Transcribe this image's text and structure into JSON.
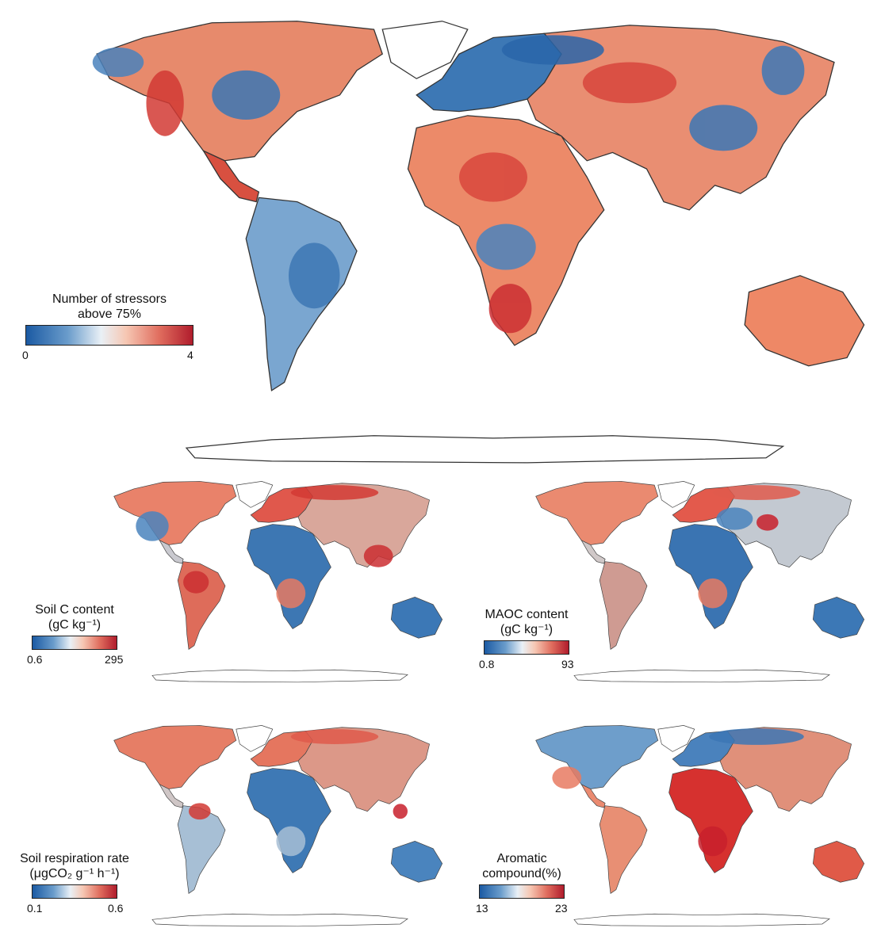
{
  "colors": {
    "ocean": "#ffffff",
    "land_outline": "#333333",
    "low": "#1f5fa6",
    "mid_low": "#8fb8da",
    "neutral": "#bfc8cf",
    "mid_high": "#f2a283",
    "high": "#cf2a2a"
  },
  "panels": [
    {
      "id": "stressors",
      "legend_title": "Number of stressors\nabove 75%",
      "min_label": "0",
      "max_label": "4"
    },
    {
      "id": "soil-c",
      "legend_title": "Soil C content\n(gC kg⁻¹)",
      "min_label": "0.6",
      "max_label": "295"
    },
    {
      "id": "maoc",
      "legend_title": "MAOC content\n(gC kg⁻¹)",
      "min_label": "0.8",
      "max_label": "93"
    },
    {
      "id": "respiration",
      "legend_title": "Soil respiration rate\n(μgCO₂ g⁻¹ h⁻¹)",
      "min_label": "0.1",
      "max_label": "0.6"
    },
    {
      "id": "aromatic",
      "legend_title": "Aromatic\ncompound(%)",
      "min_label": "13",
      "max_label": "23"
    }
  ]
}
